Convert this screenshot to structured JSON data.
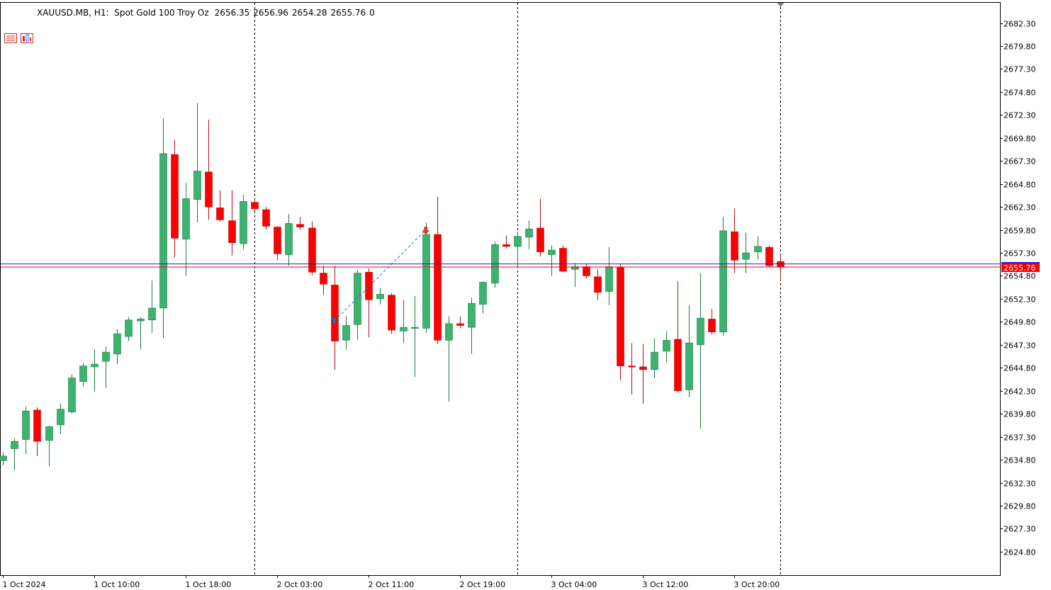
{
  "header": {
    "symbol_label": "XAUUSD.MB, H1:  Spot Gold 100 Troy Oz",
    "open": "2656.35",
    "high": "2656.96",
    "low": "2654.28",
    "close": "2655.76",
    "extra": "0"
  },
  "colors": {
    "bull": "#3cb371",
    "bear": "#ff0000",
    "wick_bull": "#1e7a3e",
    "wick_bear": "#b01010",
    "grid_vline": "#000000",
    "bid_line": "#2020d0",
    "ask_line": "#ff0000",
    "price_tag_bg": "#ff0000",
    "axis": "#000000"
  },
  "chart_data": {
    "type": "candlestick",
    "symbol": "XAUUSD.MB",
    "timeframe": "H1",
    "y_range": [
      2622.3,
      2684.3
    ],
    "y_ticks": [
      "2682.30",
      "2679.80",
      "2677.30",
      "2674.80",
      "2672.30",
      "2669.80",
      "2667.30",
      "2664.80",
      "2662.30",
      "2659.80",
      "2657.30",
      "2654.80",
      "2652.30",
      "2649.80",
      "2647.30",
      "2644.80",
      "2642.30",
      "2639.80",
      "2637.30",
      "2634.80",
      "2632.30",
      "2629.80",
      "2627.30",
      "2624.80"
    ],
    "x_ticks": [
      {
        "label": "1 Oct 2024",
        "index": 0
      },
      {
        "label": "1 Oct 10:00",
        "index": 8
      },
      {
        "label": "1 Oct 18:00",
        "index": 16
      },
      {
        "label": "2 Oct 03:00",
        "index": 24
      },
      {
        "label": "2 Oct 11:00",
        "index": 32
      },
      {
        "label": "2 Oct 19:00",
        "index": 40
      },
      {
        "label": "3 Oct 04:00",
        "index": 48
      },
      {
        "label": "3 Oct 12:00",
        "index": 56
      },
      {
        "label": "3 Oct 20:00",
        "index": 64
      }
    ],
    "day_separators": [
      22,
      45,
      68
    ],
    "current_price": "2655.76",
    "bid": 2655.76,
    "ask": 2656.1,
    "candles": [
      {
        "o": 2634.7,
        "h": 2635.6,
        "l": 2634.2,
        "c": 2635.2
      },
      {
        "o": 2636.0,
        "h": 2637.1,
        "l": 2633.6,
        "c": 2636.8
      },
      {
        "o": 2637.0,
        "h": 2640.6,
        "l": 2635.4,
        "c": 2640.1
      },
      {
        "o": 2640.2,
        "h": 2640.5,
        "l": 2635.2,
        "c": 2636.8
      },
      {
        "o": 2636.9,
        "h": 2638.5,
        "l": 2634.1,
        "c": 2638.4
      },
      {
        "o": 2638.6,
        "h": 2640.9,
        "l": 2637.6,
        "c": 2640.3
      },
      {
        "o": 2640.0,
        "h": 2644.1,
        "l": 2639.8,
        "c": 2643.7
      },
      {
        "o": 2643.3,
        "h": 2645.3,
        "l": 2642.8,
        "c": 2645.0
      },
      {
        "o": 2644.9,
        "h": 2646.8,
        "l": 2642.2,
        "c": 2645.2
      },
      {
        "o": 2645.5,
        "h": 2647.1,
        "l": 2642.6,
        "c": 2646.5
      },
      {
        "o": 2646.3,
        "h": 2649.0,
        "l": 2645.2,
        "c": 2648.5
      },
      {
        "o": 2648.2,
        "h": 2650.3,
        "l": 2647.7,
        "c": 2650.0
      },
      {
        "o": 2649.9,
        "h": 2650.3,
        "l": 2646.8,
        "c": 2650.1
      },
      {
        "o": 2650.0,
        "h": 2654.3,
        "l": 2648.6,
        "c": 2651.3
      },
      {
        "o": 2651.3,
        "h": 2671.9,
        "l": 2648.0,
        "c": 2668.1
      },
      {
        "o": 2668.0,
        "h": 2669.6,
        "l": 2656.8,
        "c": 2658.9
      },
      {
        "o": 2658.8,
        "h": 2664.9,
        "l": 2654.8,
        "c": 2663.2
      },
      {
        "o": 2663.1,
        "h": 2673.6,
        "l": 2660.6,
        "c": 2666.2
      },
      {
        "o": 2666.1,
        "h": 2671.8,
        "l": 2660.9,
        "c": 2662.3
      },
      {
        "o": 2662.2,
        "h": 2664.1,
        "l": 2660.7,
        "c": 2660.9
      },
      {
        "o": 2660.8,
        "h": 2664.1,
        "l": 2657.0,
        "c": 2658.4
      },
      {
        "o": 2658.3,
        "h": 2663.6,
        "l": 2657.7,
        "c": 2662.9
      },
      {
        "o": 2662.8,
        "h": 2663.1,
        "l": 2661.8,
        "c": 2662.1
      },
      {
        "o": 2662.0,
        "h": 2662.3,
        "l": 2659.8,
        "c": 2660.2
      },
      {
        "o": 2660.1,
        "h": 2660.2,
        "l": 2656.5,
        "c": 2657.2
      },
      {
        "o": 2657.1,
        "h": 2661.5,
        "l": 2655.9,
        "c": 2660.5
      },
      {
        "o": 2660.4,
        "h": 2661.2,
        "l": 2659.8,
        "c": 2660.1
      },
      {
        "o": 2660.0,
        "h": 2660.7,
        "l": 2654.9,
        "c": 2655.2
      },
      {
        "o": 2655.1,
        "h": 2655.9,
        "l": 2652.7,
        "c": 2653.9
      },
      {
        "o": 2653.8,
        "h": 2655.9,
        "l": 2644.6,
        "c": 2647.7
      },
      {
        "o": 2647.8,
        "h": 2650.4,
        "l": 2646.8,
        "c": 2649.4
      },
      {
        "o": 2649.5,
        "h": 2655.4,
        "l": 2647.8,
        "c": 2655.1
      },
      {
        "o": 2655.2,
        "h": 2655.6,
        "l": 2648.1,
        "c": 2652.2
      },
      {
        "o": 2652.3,
        "h": 2653.5,
        "l": 2651.7,
        "c": 2652.8
      },
      {
        "o": 2652.7,
        "h": 2652.9,
        "l": 2648.5,
        "c": 2648.9
      },
      {
        "o": 2648.8,
        "h": 2652.2,
        "l": 2647.5,
        "c": 2649.2
      },
      {
        "o": 2649.2,
        "h": 2652.6,
        "l": 2643.8,
        "c": 2649.2
      },
      {
        "o": 2649.1,
        "h": 2660.6,
        "l": 2648.6,
        "c": 2659.3
      },
      {
        "o": 2659.3,
        "h": 2663.4,
        "l": 2647.4,
        "c": 2647.8
      },
      {
        "o": 2647.8,
        "h": 2650.4,
        "l": 2641.1,
        "c": 2649.6
      },
      {
        "o": 2649.6,
        "h": 2650.4,
        "l": 2649.1,
        "c": 2649.4
      },
      {
        "o": 2649.2,
        "h": 2652.4,
        "l": 2646.3,
        "c": 2651.8
      },
      {
        "o": 2651.7,
        "h": 2654.2,
        "l": 2650.7,
        "c": 2654.1
      },
      {
        "o": 2654.0,
        "h": 2658.5,
        "l": 2653.5,
        "c": 2658.2
      },
      {
        "o": 2658.2,
        "h": 2659.2,
        "l": 2657.8,
        "c": 2658.0
      },
      {
        "o": 2658.0,
        "h": 2659.6,
        "l": 2655.6,
        "c": 2659.1
      },
      {
        "o": 2659.0,
        "h": 2660.8,
        "l": 2657.7,
        "c": 2659.9
      },
      {
        "o": 2660.0,
        "h": 2663.2,
        "l": 2656.9,
        "c": 2657.4
      },
      {
        "o": 2657.1,
        "h": 2658.1,
        "l": 2654.8,
        "c": 2657.6
      },
      {
        "o": 2657.8,
        "h": 2658.1,
        "l": 2655.2,
        "c": 2655.3
      },
      {
        "o": 2655.5,
        "h": 2656.2,
        "l": 2653.6,
        "c": 2655.8
      },
      {
        "o": 2655.8,
        "h": 2656.1,
        "l": 2654.5,
        "c": 2654.8
      },
      {
        "o": 2654.7,
        "h": 2655.5,
        "l": 2652.2,
        "c": 2653.0
      },
      {
        "o": 2653.1,
        "h": 2657.9,
        "l": 2651.6,
        "c": 2655.8
      },
      {
        "o": 2655.7,
        "h": 2656.1,
        "l": 2643.4,
        "c": 2645.0
      },
      {
        "o": 2645.0,
        "h": 2647.5,
        "l": 2641.9,
        "c": 2644.9
      },
      {
        "o": 2644.9,
        "h": 2647.4,
        "l": 2640.9,
        "c": 2644.6
      },
      {
        "o": 2644.6,
        "h": 2648.0,
        "l": 2643.7,
        "c": 2646.5
      },
      {
        "o": 2646.6,
        "h": 2648.8,
        "l": 2645.4,
        "c": 2647.8
      },
      {
        "o": 2647.9,
        "h": 2654.2,
        "l": 2642.1,
        "c": 2642.3
      },
      {
        "o": 2642.4,
        "h": 2651.6,
        "l": 2641.6,
        "c": 2647.5
      },
      {
        "o": 2647.3,
        "h": 2655.1,
        "l": 2638.2,
        "c": 2650.2
      },
      {
        "o": 2650.1,
        "h": 2651.2,
        "l": 2648.4,
        "c": 2648.7
      },
      {
        "o": 2648.7,
        "h": 2661.2,
        "l": 2648.3,
        "c": 2659.7
      },
      {
        "o": 2659.6,
        "h": 2662.1,
        "l": 2655.1,
        "c": 2656.5
      },
      {
        "o": 2656.6,
        "h": 2659.5,
        "l": 2655.1,
        "c": 2657.3
      },
      {
        "o": 2657.4,
        "h": 2659.1,
        "l": 2656.6,
        "c": 2658.0
      },
      {
        "o": 2657.9,
        "h": 2658.1,
        "l": 2655.8,
        "c": 2655.9
      },
      {
        "o": 2656.35,
        "h": 2656.96,
        "l": 2654.28,
        "c": 2655.76
      }
    ],
    "trade_arrows": [
      {
        "index": 29,
        "price": 2649.9,
        "direction": "buy",
        "color": "#1e6fd0"
      },
      {
        "index": 37,
        "price": 2659.8,
        "direction": "sell",
        "color": "#ff3300"
      }
    ],
    "trade_line": {
      "from_index": 29,
      "from_price": 2649.9,
      "to_index": 37,
      "to_price": 2659.8,
      "color": "#1e6fd0"
    }
  }
}
